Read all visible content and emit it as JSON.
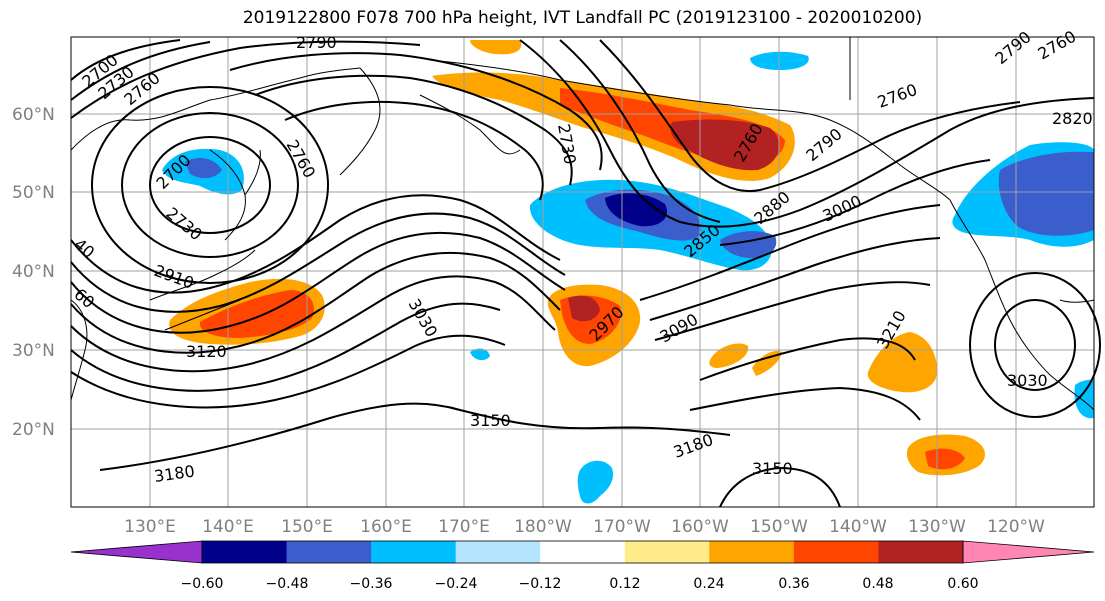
{
  "title": "2019122800 F078 700 hPa height, IVT Landfall PC (2019123100 - 2020010200)",
  "lat_labels": [
    "60°N",
    "50°N",
    "40°N",
    "30°N",
    "20°N"
  ],
  "lon_labels": [
    "130°E",
    "140°E",
    "150°E",
    "160°E",
    "170°E",
    "180°W",
    "170°W",
    "160°W",
    "150°W",
    "140°W",
    "130°W",
    "120°W"
  ],
  "contour_labels": [
    "2700",
    "2730",
    "2760",
    "2790",
    "2700",
    "2760",
    "2730",
    "2910",
    "3120",
    "3030",
    "2730",
    "2760",
    "2790",
    "2880",
    "2850",
    "3000",
    "2970",
    "3090",
    "3150",
    "3180",
    "3180",
    "3150",
    "3210",
    "3030",
    "2820",
    "2760",
    "2790",
    "2760",
    "40",
    "60"
  ],
  "colorbar": {
    "tick_labels": [
      "−0.60",
      "−0.48",
      "−0.36",
      "−0.24",
      "−0.12",
      "0.12",
      "0.24",
      "0.36",
      "0.48",
      "0.60"
    ],
    "colors": [
      "#9932cc",
      "#00008b",
      "#3a5fcd",
      "#00bfff",
      "#b3e5ff",
      "#ffffff",
      "#ffeb88",
      "#ffa500",
      "#ff4500",
      "#b22222",
      "#ff86b3"
    ]
  }
}
